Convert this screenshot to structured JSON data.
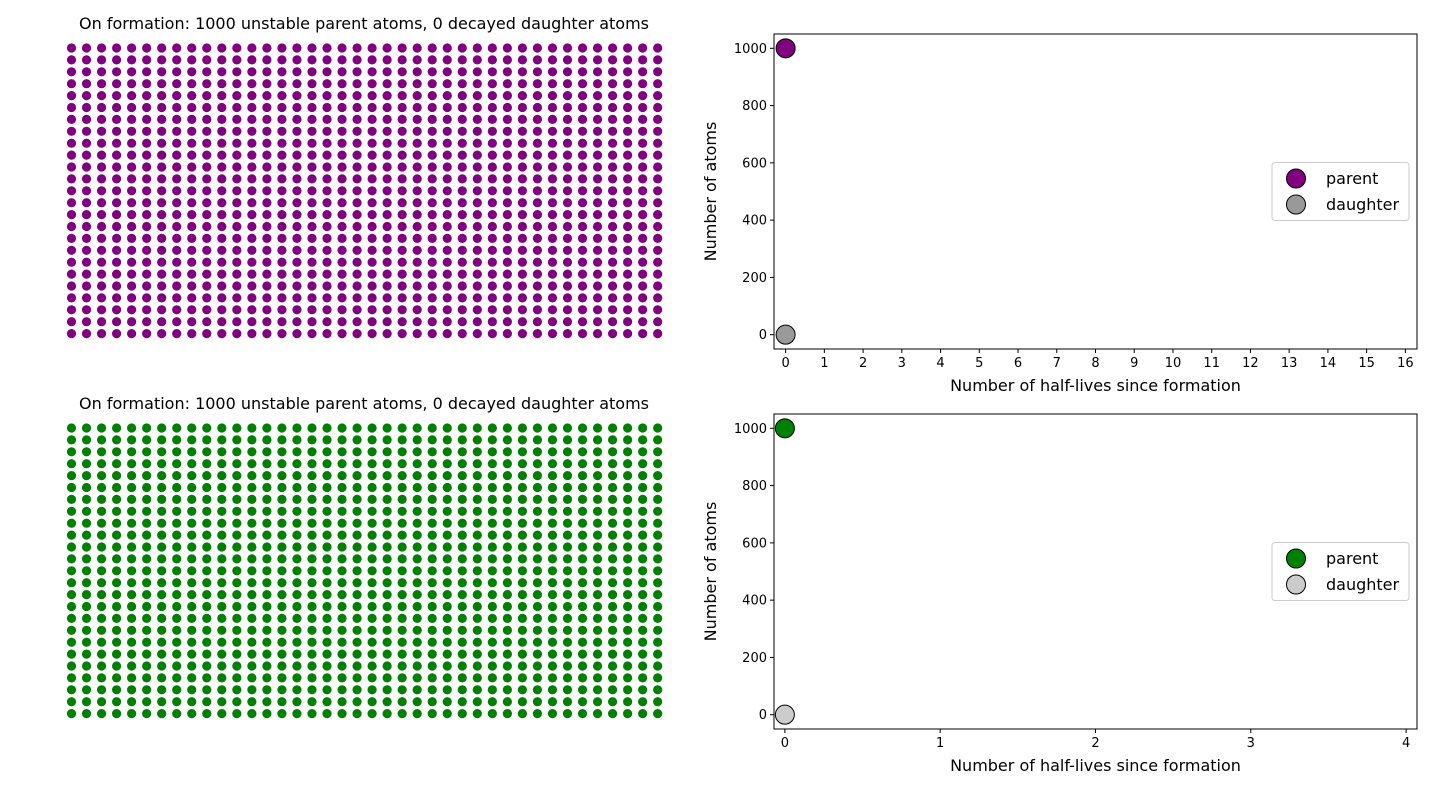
{
  "figure": {
    "panels": [
      {
        "title": "On formation: 1000 unstable parent atoms, 0 decayed daughter atoms",
        "parent_color": "#800080",
        "daughter_color": "#999999"
      },
      {
        "title": "On formation: 1000 unstable parent atoms, 0 decayed daughter atoms",
        "parent_color": "#008000",
        "daughter_color": "#cccccc"
      }
    ]
  },
  "chart_data": [
    {
      "type": "scatter",
      "title": "On formation: 1000 unstable parent atoms, 0 decayed daughter atoms",
      "description_kind": "dot-grid",
      "columns": 40,
      "rows": 25,
      "parent_count": 1000,
      "daughter_count": 0,
      "parent_color": "#800080",
      "daughter_color": "#999999"
    },
    {
      "type": "scatter",
      "xlabel": "Number of half-lives since formation",
      "ylabel": "Number of atoms",
      "xlim": [
        -0.3,
        16.3
      ],
      "ylim": [
        -50,
        1050
      ],
      "xticks": [
        0,
        1,
        2,
        3,
        4,
        5,
        6,
        7,
        8,
        9,
        10,
        11,
        12,
        13,
        14,
        15,
        16
      ],
      "yticks": [
        0,
        200,
        400,
        600,
        800,
        1000
      ],
      "grid": false,
      "legend_position": "center-right",
      "series": [
        {
          "name": "parent",
          "color": "#800080",
          "points": [
            {
              "x": 0,
              "y": 1000
            }
          ]
        },
        {
          "name": "daughter",
          "color": "#999999",
          "points": [
            {
              "x": 0,
              "y": 0
            }
          ]
        }
      ]
    },
    {
      "type": "scatter",
      "title": "On formation: 1000 unstable parent atoms, 0 decayed daughter atoms",
      "description_kind": "dot-grid",
      "columns": 40,
      "rows": 25,
      "parent_count": 1000,
      "daughter_count": 0,
      "parent_color": "#008000",
      "daughter_color": "#cccccc"
    },
    {
      "type": "scatter",
      "xlabel": "Number of half-lives since formation",
      "ylabel": "Number of atoms",
      "xlim": [
        -0.07,
        4.07
      ],
      "ylim": [
        -50,
        1050
      ],
      "xticks": [
        0,
        1,
        2,
        3,
        4
      ],
      "yticks": [
        0,
        200,
        400,
        600,
        800,
        1000
      ],
      "grid": false,
      "legend_position": "center-right",
      "series": [
        {
          "name": "parent",
          "color": "#008000",
          "points": [
            {
              "x": 0,
              "y": 1000
            }
          ]
        },
        {
          "name": "daughter",
          "color": "#cccccc",
          "points": [
            {
              "x": 0,
              "y": 0
            }
          ]
        }
      ]
    }
  ]
}
